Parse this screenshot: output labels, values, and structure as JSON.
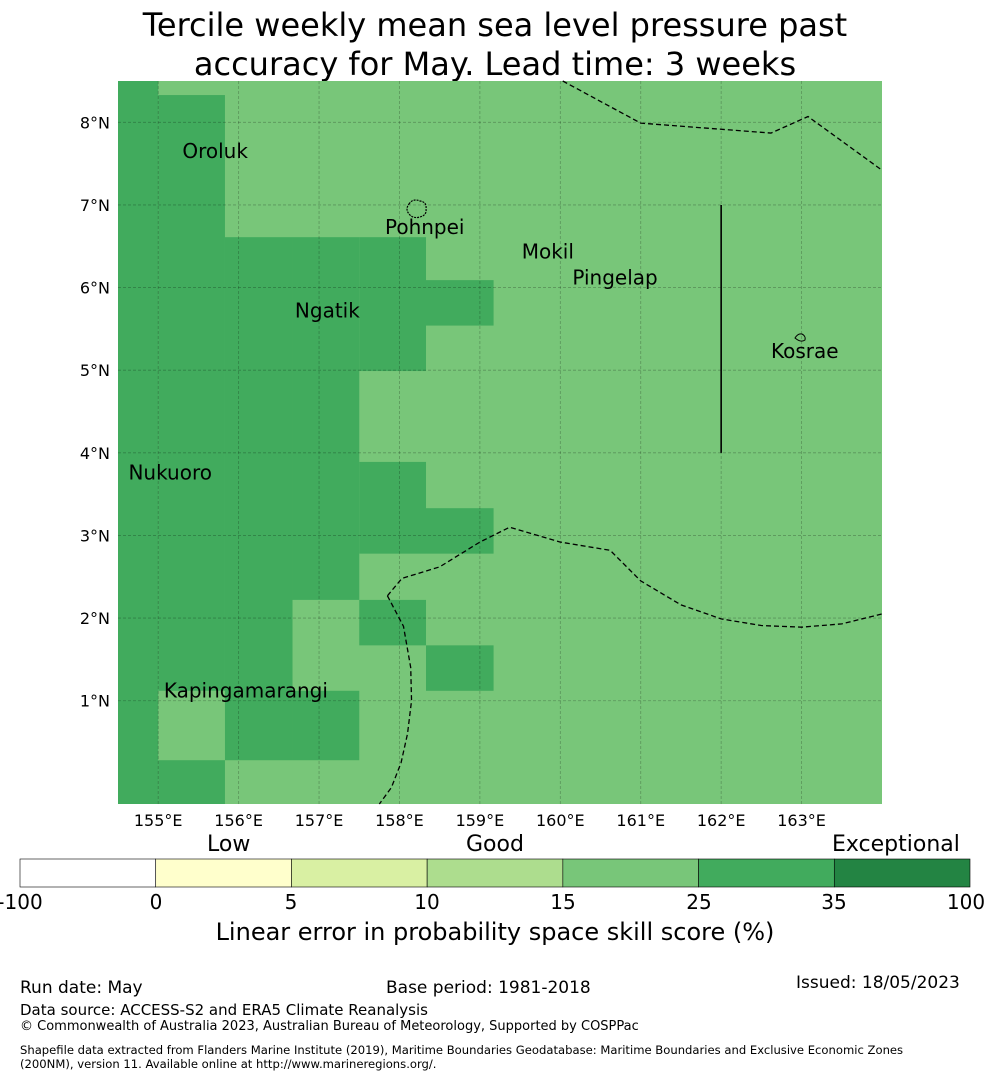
{
  "title": {
    "line1": "Tercile weekly mean sea level pressure past",
    "line2": "accuracy for May. Lead time: 3 weeks"
  },
  "map": {
    "lon_range": [
      154.5,
      164.0
    ],
    "lat_range": [
      -0.25,
      8.5
    ],
    "lon_ticks": [
      {
        "value": 155,
        "label": "155°E"
      },
      {
        "value": 156,
        "label": "156°E"
      },
      {
        "value": 157,
        "label": "157°E"
      },
      {
        "value": 158,
        "label": "158°E"
      },
      {
        "value": 159,
        "label": "159°E"
      },
      {
        "value": 160,
        "label": "160°E"
      },
      {
        "value": 161,
        "label": "161°E"
      },
      {
        "value": 162,
        "label": "162°E"
      },
      {
        "value": 163,
        "label": "163°E"
      }
    ],
    "lat_ticks": [
      {
        "value": 1,
        "label": "1°N"
      },
      {
        "value": 2,
        "label": "2°N"
      },
      {
        "value": 3,
        "label": "3°N"
      },
      {
        "value": 4,
        "label": "4°N"
      },
      {
        "value": 5,
        "label": "5°N"
      },
      {
        "value": 6,
        "label": "6°N"
      },
      {
        "value": 7,
        "label": "7°N"
      },
      {
        "value": 8,
        "label": "8°N"
      }
    ],
    "grid": true,
    "base_color": "#78c679",
    "high_color": "#41ab5d",
    "high_skill_cells": [
      {
        "lon": [
          154.5,
          155.0
        ],
        "lat": [
          -0.25,
          8.5
        ]
      },
      {
        "lon": [
          155.0,
          155.83
        ],
        "lat": [
          -0.25,
          0.28
        ]
      },
      {
        "lon": [
          155.0,
          155.83
        ],
        "lat": [
          1.12,
          8.33
        ]
      },
      {
        "lon": [
          155.83,
          156.67
        ],
        "lat": [
          0.28,
          6.61
        ]
      },
      {
        "lon": [
          156.67,
          157.5
        ],
        "lat": [
          0.28,
          1.12
        ]
      },
      {
        "lon": [
          156.67,
          157.5
        ],
        "lat": [
          2.22,
          6.61
        ]
      },
      {
        "lon": [
          157.5,
          158.33
        ],
        "lat": [
          1.67,
          2.22
        ]
      },
      {
        "lon": [
          157.5,
          158.33
        ],
        "lat": [
          2.78,
          3.89
        ]
      },
      {
        "lon": [
          157.5,
          158.33
        ],
        "lat": [
          4.99,
          6.61
        ]
      },
      {
        "lon": [
          158.33,
          159.17
        ],
        "lat": [
          1.12,
          1.67
        ]
      },
      {
        "lon": [
          158.33,
          159.17
        ],
        "lat": [
          2.78,
          3.33
        ]
      },
      {
        "lon": [
          158.33,
          159.17
        ],
        "lat": [
          5.54,
          6.09
        ]
      }
    ],
    "places": [
      {
        "name": "Oroluk",
        "lon": 155.3,
        "lat": 7.57
      },
      {
        "name": "Pohnpei",
        "lon": 157.82,
        "lat": 6.65
      },
      {
        "name": "Mokil",
        "lon": 159.52,
        "lat": 6.35
      },
      {
        "name": "Pingelap",
        "lon": 160.15,
        "lat": 6.04
      },
      {
        "name": "Ngatik",
        "lon": 156.7,
        "lat": 5.64
      },
      {
        "name": "Kosrae",
        "lon": 162.62,
        "lat": 5.15
      },
      {
        "name": "Nukuoro",
        "lon": 154.63,
        "lat": 3.68
      },
      {
        "name": "Kapingamarangi",
        "lon": 155.07,
        "lat": 1.04
      }
    ],
    "boundaries": [
      [
        [
          160.03,
          8.5
        ],
        [
          161.0,
          7.99
        ],
        [
          162.62,
          7.87
        ],
        [
          163.08,
          8.07
        ],
        [
          164.0,
          7.42
        ]
      ],
      [
        [
          157.85,
          2.27
        ],
        [
          158.03,
          2.48
        ],
        [
          158.5,
          2.62
        ],
        [
          159.0,
          2.92
        ],
        [
          159.37,
          3.1
        ],
        [
          160.0,
          2.92
        ],
        [
          160.62,
          2.82
        ],
        [
          161.0,
          2.45
        ],
        [
          161.5,
          2.16
        ],
        [
          162.0,
          1.99
        ],
        [
          162.5,
          1.91
        ],
        [
          163.0,
          1.89
        ],
        [
          163.5,
          1.93
        ],
        [
          164.0,
          2.05
        ]
      ],
      [
        [
          157.85,
          2.27
        ],
        [
          158.05,
          1.9
        ],
        [
          158.14,
          1.4
        ],
        [
          158.15,
          1.0
        ],
        [
          158.1,
          0.6
        ],
        [
          158.02,
          0.25
        ],
        [
          157.9,
          -0.05
        ],
        [
          157.75,
          -0.25
        ]
      ]
    ],
    "line_segment": [
      [
        162.0,
        7.0
      ],
      [
        162.0,
        4.0
      ]
    ]
  },
  "colorbar": {
    "category_labels": [
      "Low",
      "Good",
      "Exceptional"
    ],
    "ticks": [
      "-100",
      "0",
      "5",
      "10",
      "15",
      "25",
      "35",
      "100"
    ],
    "colors": [
      "#ffffff",
      "#ffffcc",
      "#d9f0a3",
      "#addd8e",
      "#78c679",
      "#41ab5d",
      "#238443"
    ],
    "title": "Linear error in probability space skill score (%)"
  },
  "footer": {
    "run_date": "Run date: May",
    "base_period": "Base period: 1981-2018",
    "issued": "Issued: 18/05/2023",
    "data_source": "Data source: ACCESS-S2 and ERA5 Climate Reanalysis",
    "copyright": "© Commonwealth of Australia 2023, Australian Bureau of Meteorology, Supported by COSPPac",
    "shapefile_line1": "Shapefile data extracted from Flanders Marine Institute (2019), Maritime Boundaries Geodatabase: Maritime Boundaries and Exclusive Economic Zones",
    "shapefile_line2": "(200NM), version 11. Available online at http://www.marineregions.org/."
  }
}
